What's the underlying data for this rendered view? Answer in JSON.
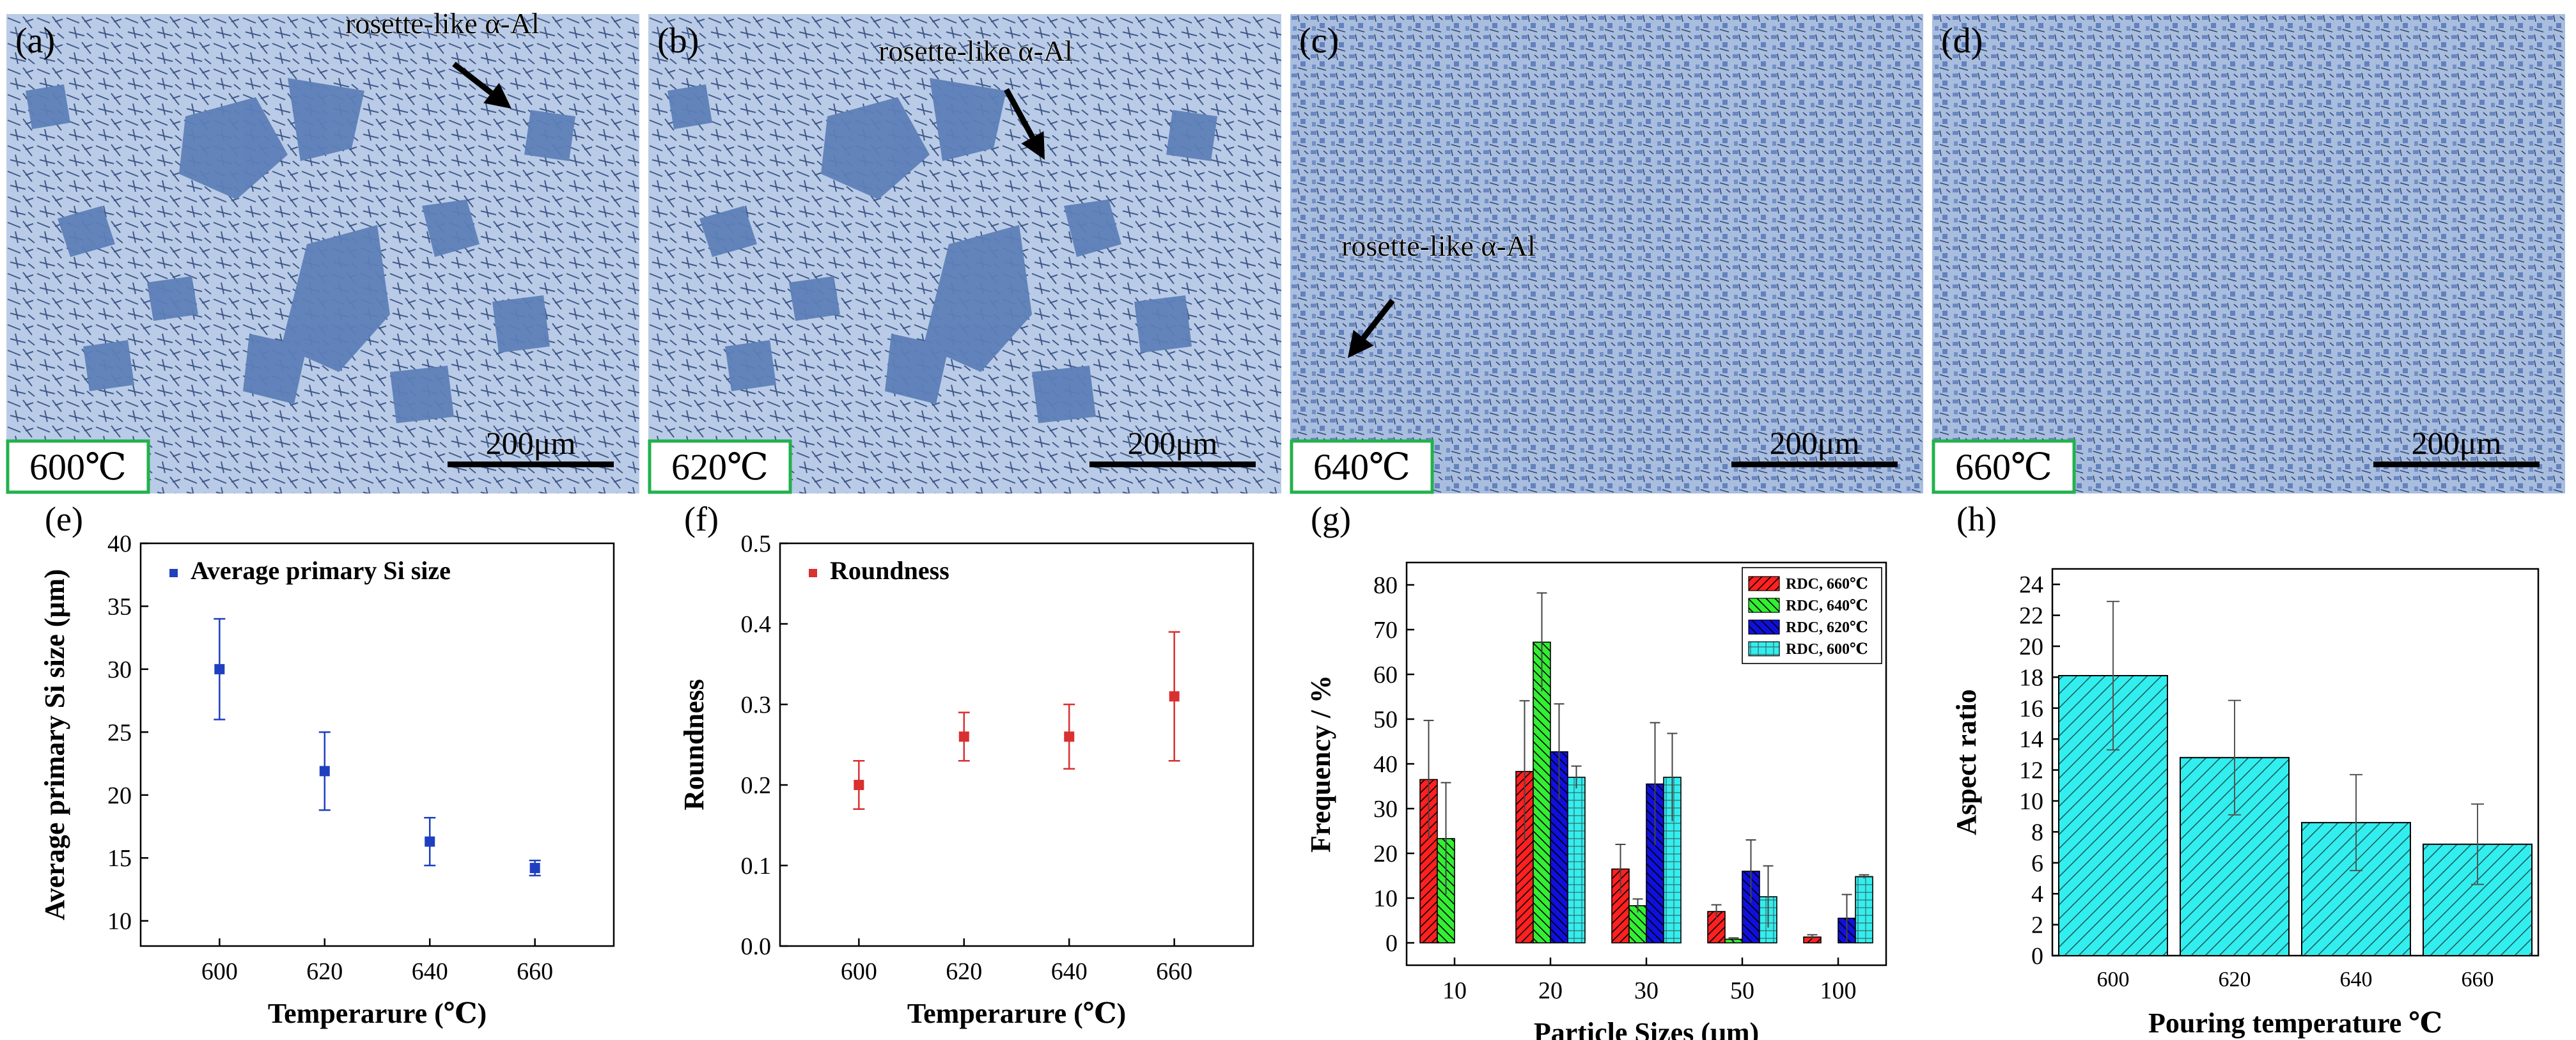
{
  "micrographs": [
    {
      "letter": "(a)",
      "temp": "600℃",
      "scale": "200μm",
      "annotation": "rosette-like α-Al"
    },
    {
      "letter": "(b)",
      "temp": "620℃",
      "scale": "200μm",
      "annotation": "rosette-like α-Al"
    },
    {
      "letter": "(c)",
      "temp": "640℃",
      "scale": "200μm",
      "annotation": "rosette-like α-Al"
    },
    {
      "letter": "(d)",
      "temp": "660℃",
      "scale": "200μm",
      "annotation": ""
    }
  ],
  "colors": {
    "photo_bg": "#b9cbe6",
    "phase_dark": "#5d7fb8",
    "needle": "#3f5a87",
    "temp_box_border": "#22b14c",
    "series_blue": "#1f3fbf",
    "series_red": "#d93030",
    "bar_red": "#ff2020",
    "bar_green": "#33ee33",
    "bar_blue": "#1010dd",
    "bar_cyan": "#33eeee"
  },
  "chart_data": [
    {
      "panel": "(e)",
      "type": "scatter",
      "title": "",
      "xlabel": "Temperarure (℃)",
      "ylabel": "Average primary Si size (μm)",
      "xlim": [
        585,
        675
      ],
      "ylim": [
        8,
        40
      ],
      "xticks": [
        "600",
        "620",
        "640",
        "660"
      ],
      "yticks": [
        "10",
        "15",
        "20",
        "25",
        "30",
        "35",
        "40"
      ],
      "series": [
        {
          "name": "Average primary Si size",
          "x": [
            600,
            620,
            640,
            660
          ],
          "y": [
            30,
            21.9,
            16.3,
            14.2
          ],
          "err": [
            4,
            3.1,
            1.9,
            0.6
          ]
        }
      ]
    },
    {
      "panel": "(f)",
      "type": "scatter",
      "title": "",
      "xlabel": "Temperarure (℃)",
      "ylabel": "Roundness",
      "xlim": [
        585,
        675
      ],
      "ylim": [
        0.0,
        0.5
      ],
      "xticks": [
        "600",
        "620",
        "640",
        "660"
      ],
      "yticks": [
        "0.0",
        "0.1",
        "0.2",
        "0.3",
        "0.4",
        "0.5"
      ],
      "series": [
        {
          "name": "Roundness",
          "x": [
            600,
            620,
            640,
            660
          ],
          "y": [
            0.2,
            0.26,
            0.26,
            0.31
          ],
          "err": [
            0.03,
            0.03,
            0.04,
            0.08
          ]
        }
      ]
    },
    {
      "panel": "(g)",
      "type": "bar",
      "title": "",
      "xlabel": "Particle Sizes (μm)",
      "ylabel": "Frequency / %",
      "categories": [
        "10",
        "20",
        "30",
        "50",
        "100"
      ],
      "ylim": [
        -5,
        85
      ],
      "yticks": [
        "0",
        "10",
        "20",
        "30",
        "40",
        "50",
        "60",
        "70",
        "80"
      ],
      "legend": "top-right",
      "series": [
        {
          "name": "RDC, 660℃",
          "values": [
            36.5,
            38.3,
            16.5,
            7.0,
            1.3
          ],
          "err": [
            13.2,
            15.8,
            5.5,
            1.5,
            0.5
          ],
          "hatch": "diag-right"
        },
        {
          "name": "RDC, 640℃",
          "values": [
            23.3,
            67.2,
            8.3,
            0.8,
            0.0
          ],
          "err": [
            12.5,
            11.0,
            1.5,
            0.3,
            0.0
          ],
          "hatch": "diag-left"
        },
        {
          "name": "RDC, 620℃",
          "values": [
            0.0,
            42.7,
            35.5,
            16.0,
            5.5
          ],
          "err": [
            0.0,
            10.7,
            13.7,
            7.0,
            5.3
          ],
          "hatch": "diag-left"
        },
        {
          "name": "RDC, 600℃",
          "values": [
            0.0,
            37.0,
            37.0,
            10.3,
            14.8
          ],
          "err": [
            0.0,
            2.5,
            9.8,
            6.9,
            0.4
          ],
          "hatch": "grid"
        }
      ]
    },
    {
      "panel": "(h)",
      "type": "bar",
      "title": "",
      "xlabel": "Pouring temperature ℃",
      "ylabel": "Aspect ratio",
      "categories": [
        "600",
        "620",
        "640",
        "660"
      ],
      "ylim": [
        0,
        25
      ],
      "yticks": [
        "0",
        "2",
        "4",
        "6",
        "8",
        "10",
        "12",
        "14",
        "16",
        "18",
        "20",
        "22",
        "24"
      ],
      "series": [
        {
          "name": "",
          "values": [
            18.1,
            12.8,
            8.6,
            7.2
          ],
          "err": [
            4.8,
            3.7,
            3.1,
            2.6
          ],
          "hatch": "diag-left"
        }
      ]
    }
  ]
}
